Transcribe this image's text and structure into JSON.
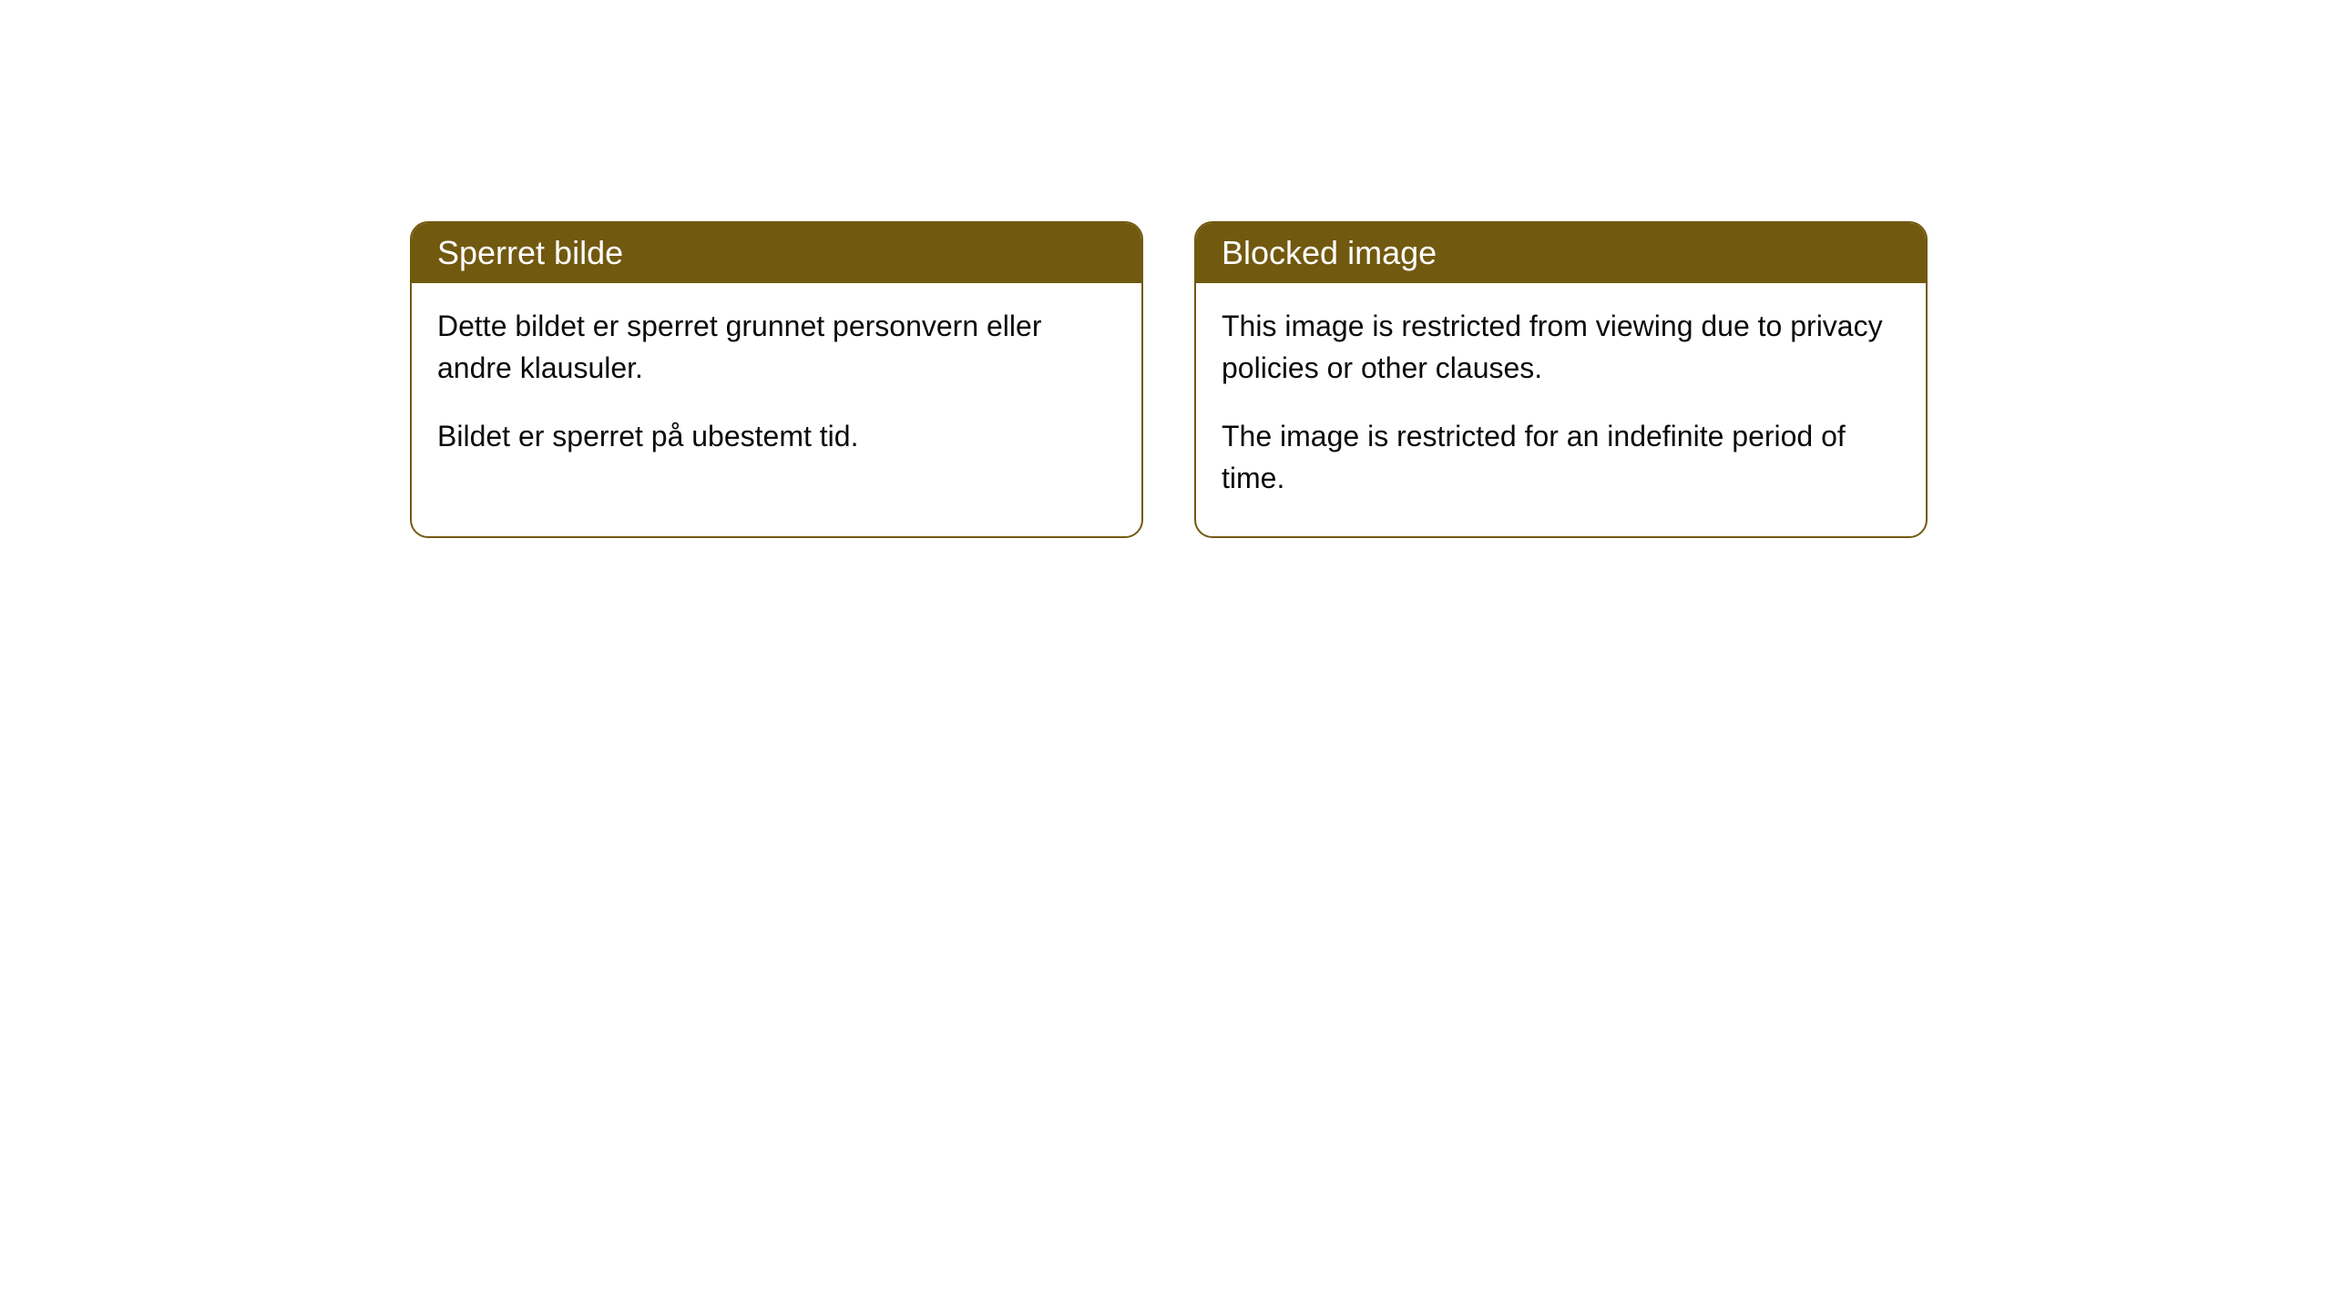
{
  "cards": [
    {
      "title": "Sperret bilde",
      "paragraph1": "Dette bildet er sperret grunnet personvern eller andre klausuler.",
      "paragraph2": "Bildet er sperret på ubestemt tid."
    },
    {
      "title": "Blocked image",
      "paragraph1": "This image is restricted from viewing due to privacy policies or other clauses.",
      "paragraph2": "The image is restricted for an indefinite period of time."
    }
  ],
  "styling": {
    "header_background": "#725910",
    "header_text_color": "#ffffff",
    "border_color": "#725910",
    "body_background": "#ffffff",
    "body_text_color": "#0a0a0a",
    "border_radius": 20,
    "header_fontsize": 36,
    "body_fontsize": 32
  }
}
